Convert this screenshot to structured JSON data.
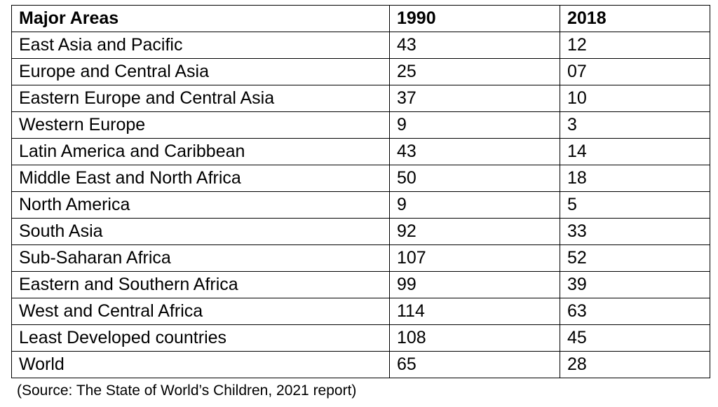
{
  "table": {
    "headers": [
      "Major Areas",
      "1990",
      "2018"
    ],
    "rows": [
      [
        "East Asia and Pacific",
        "43",
        "12"
      ],
      [
        "Europe and Central Asia",
        "25",
        "07"
      ],
      [
        "Eastern Europe and Central Asia",
        "37",
        "10"
      ],
      [
        "Western Europe",
        "9",
        "3"
      ],
      [
        "Latin America and Caribbean",
        "43",
        "14"
      ],
      [
        "Middle East and North Africa",
        "50",
        "18"
      ],
      [
        "North America",
        "9",
        "5"
      ],
      [
        "South Asia",
        "92",
        "33"
      ],
      [
        "Sub-Saharan Africa",
        "107",
        "52"
      ],
      [
        "Eastern and Southern Africa",
        "99",
        "39"
      ],
      [
        "West and Central Africa",
        "114",
        "63"
      ],
      [
        "Least Developed countries",
        "108",
        "45"
      ],
      [
        "World",
        "65",
        "28"
      ]
    ]
  },
  "source_note": "(Source: The State of World’s Children, 2021 report)"
}
